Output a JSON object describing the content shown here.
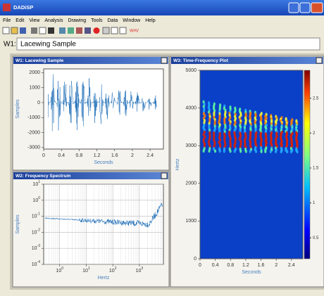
{
  "app": {
    "title": "DADiSP",
    "menu": [
      "File",
      "Edit",
      "View",
      "Analysis",
      "Drawing",
      "Tools",
      "Data",
      "Window",
      "Help"
    ],
    "toolbar_text": "WAV",
    "window_label": "W1:",
    "window_field": "Lacewing Sample"
  },
  "windows": [
    {
      "title": "W1: Lacewing Sample",
      "chart": {
        "type": "waveform",
        "color": "#1f6fb8",
        "xlabel": "Seconds",
        "ylabel": "Samples",
        "xlim": [
          0,
          2.7
        ],
        "xticks": [
          0,
          0.4,
          0.8,
          1.2,
          1.6,
          2,
          2.4
        ],
        "ylim": [
          -3100,
          2250
        ],
        "yticks": [
          2000,
          1000,
          0,
          -1000,
          -2000,
          -3000
        ]
      }
    },
    {
      "title": "W2: Frequency Spectrum",
      "chart": {
        "type": "spectrum",
        "color": "#1f6fb8",
        "xlabel": "Hertz",
        "ylabel": "Samples",
        "log_x": true,
        "log_y": true,
        "grid": true,
        "xlim": [
          0.25,
          8000
        ],
        "xticks": [
          {
            "value": 1,
            "label": "10",
            "exponent": "0"
          },
          {
            "value": 10,
            "label": "10",
            "exponent": "1"
          },
          {
            "value": 100,
            "label": "10",
            "exponent": "2"
          },
          {
            "value": 1000,
            "label": "10",
            "exponent": "3"
          }
        ],
        "ylim": [
          0.0001,
          10
        ],
        "yticks": [
          {
            "value": 10,
            "label": "10",
            "exponent": "1"
          },
          {
            "value": 1,
            "label": "10",
            "exponent": "0"
          },
          {
            "value": 0.1,
            "label": "10",
            "exponent": "-1"
          },
          {
            "value": 0.01,
            "label": "10",
            "exponent": "-2"
          },
          {
            "value": 0.001,
            "label": "10",
            "exponent": "-3"
          },
          {
            "value": 0.0001,
            "label": "10",
            "exponent": "-4"
          }
        ]
      }
    },
    {
      "title": "W3: Time-Frequency Plot",
      "chart": {
        "type": "spectrogram",
        "xlabel": "Seconds",
        "ylabel": "Hertz",
        "xlim": [
          0,
          2.7
        ],
        "xticks": [
          0,
          0.4,
          0.8,
          1.2,
          1.6,
          2,
          2.4
        ],
        "ylim": [
          0,
          5000
        ],
        "yticks": [
          0,
          1000,
          2000,
          3000,
          4000,
          5000
        ],
        "colorbar": {
          "lim": [
            0.2,
            2.9
          ],
          "ticks": [
            0.5,
            1,
            1.5,
            2,
            2.5
          ]
        }
      }
    }
  ]
}
